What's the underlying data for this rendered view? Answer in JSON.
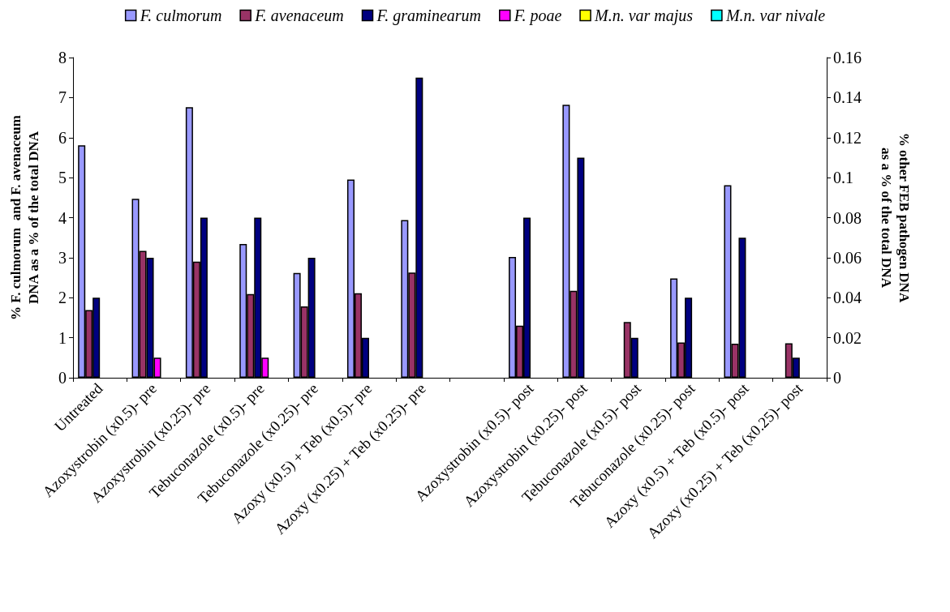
{
  "chart_data": {
    "type": "bar",
    "ylabel": "% F. culmorum  and F. avenaceum\nDNA as a % of the total DNA",
    "y2label": "% other FEB pathogen DNA\nas a % of the total DNA",
    "categories": [
      "Untreated",
      "Azoxystrobin (x0.5)- pre",
      "Azoxystrobin (x0.25)- pre",
      "Tebuconazole (x0.5)- pre",
      "Tebuconazole (x0.25)- pre",
      "Azoxy (x0.5) + Teb (x0.5)- pre",
      "Azoxy (x0.25) + Teb (x0.25)- pre",
      null,
      "Azoxystrobin (x0.5)- post",
      "Azoxystrobin (x0.25)- post",
      "Tebuconazole (x0.5)- post",
      "Tebuconazole (x0.25)- post",
      "Azoxy (x0.5) + Teb (x0.5)- post",
      "Azoxy (x0.25) + Teb (x0.25)- post"
    ],
    "series": [
      {
        "name": "F. culmorum",
        "color": "#9999ff",
        "values": [
          5.81,
          4.47,
          6.76,
          3.34,
          2.62,
          4.95,
          3.94,
          null,
          3.02,
          6.82,
          null,
          2.48,
          4.81,
          null
        ]
      },
      {
        "name": "F. avenaceum",
        "color": "#993366",
        "values": [
          1.69,
          3.17,
          2.9,
          2.09,
          1.78,
          2.11,
          2.63,
          null,
          1.3,
          2.17,
          1.39,
          0.88,
          0.85,
          0.86
        ]
      },
      {
        "name": "F. graminearum",
        "color": "#000080",
        "axis": "y2",
        "values": [
          0.04,
          0.06,
          0.08,
          0.08,
          0.06,
          0.02,
          0.15,
          null,
          0.08,
          0.11,
          0.02,
          0.04,
          0.07,
          0.01
        ]
      },
      {
        "name": "F. poae",
        "color": "#ff00ff",
        "axis": "y2",
        "values": [
          null,
          0.01,
          null,
          0.01,
          null,
          null,
          null,
          null,
          null,
          null,
          null,
          null,
          null,
          null
        ]
      },
      {
        "name": "M.n. var majus",
        "color": "#ffff00",
        "axis": "y2",
        "values": [
          null,
          null,
          null,
          null,
          null,
          null,
          null,
          null,
          null,
          null,
          null,
          null,
          null,
          null
        ]
      },
      {
        "name": "M.n. var nivale",
        "color": "#00ffff",
        "axis": "y2",
        "values": [
          null,
          null,
          null,
          null,
          null,
          null,
          null,
          null,
          null,
          null,
          null,
          null,
          null,
          null
        ]
      }
    ],
    "ylim": [
      0,
      8
    ],
    "yticks": [
      0,
      1,
      2,
      3,
      4,
      5,
      6,
      7,
      8
    ],
    "y2lim": [
      0,
      0.16
    ],
    "y2ticks": [
      0,
      0.02,
      0.04,
      0.06,
      0.08,
      0.1,
      0.12,
      0.14,
      0.16
    ],
    "grid": false,
    "legend": "top"
  }
}
